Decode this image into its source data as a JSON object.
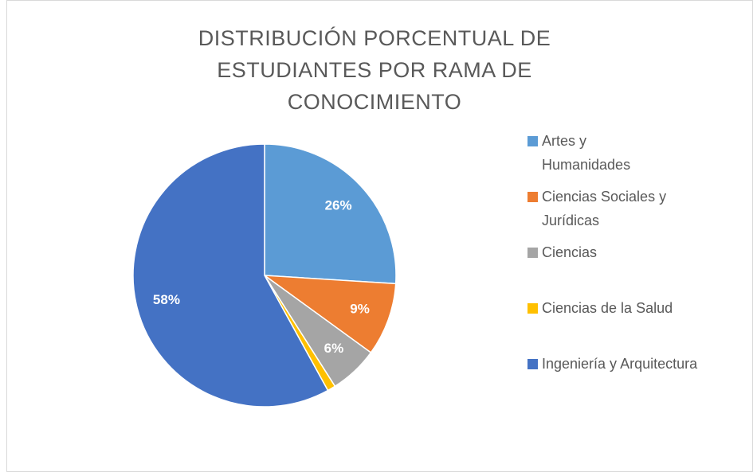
{
  "chart_data": {
    "type": "pie",
    "title": "DISTRIBUCIÓN PORCENTUAL DE ESTUDIANTES POR RAMA DE CONOCIMIENTO",
    "categories": [
      "Artes y Humanidades",
      "Ciencias Sociales y Jurídicas",
      "Ciencias",
      "Ciencias de la Salud",
      "Ingeniería y Arquitectura"
    ],
    "values": [
      26,
      9,
      6,
      1,
      58
    ],
    "value_labels": [
      "26%",
      "9%",
      "6%",
      "1%",
      "58%"
    ],
    "colors": [
      "#5b9bd5",
      "#ed7d31",
      "#a5a5a5",
      "#ffc000",
      "#4472c4"
    ],
    "legend": "right"
  }
}
